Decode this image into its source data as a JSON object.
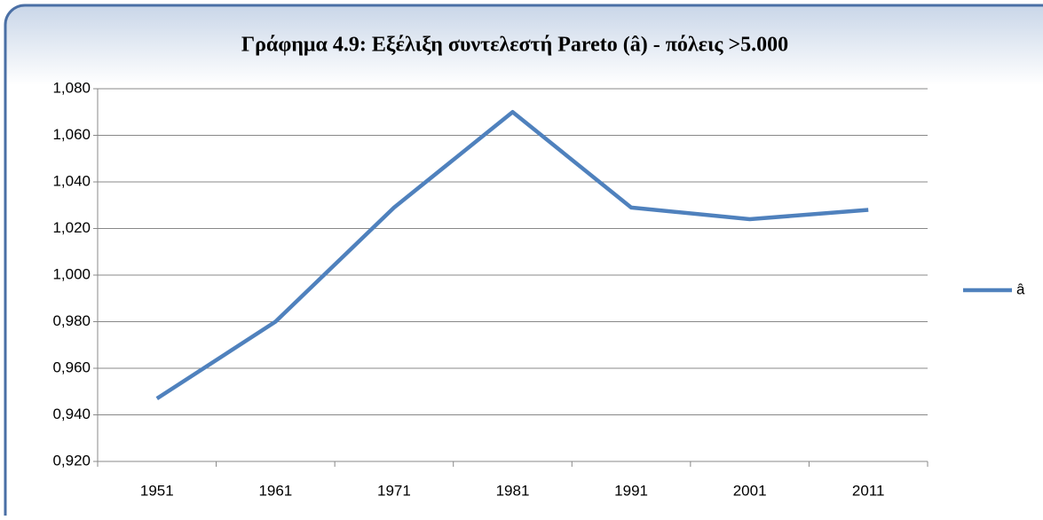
{
  "chart_data": {
    "type": "line",
    "title": "Γράφημα 4.9: Εξέλιξη συντελεστή Pareto (â) - πόλεις  >5.000",
    "categories": [
      "1951",
      "1961",
      "1971",
      "1981",
      "1991",
      "2001",
      "2011"
    ],
    "series": [
      {
        "name": "â",
        "color": "#4f81bd",
        "values": [
          0.947,
          0.98,
          1.029,
          1.07,
          1.029,
          1.024,
          1.028
        ]
      }
    ],
    "ylim": [
      0.92,
      1.08
    ],
    "yticks": [
      {
        "value": 0.92,
        "label": "0,920"
      },
      {
        "value": 0.94,
        "label": "0,940"
      },
      {
        "value": 0.96,
        "label": "0,960"
      },
      {
        "value": 0.98,
        "label": "0,980"
      },
      {
        "value": 1.0,
        "label": "1,000"
      },
      {
        "value": 1.02,
        "label": "1,020"
      },
      {
        "value": 1.04,
        "label": "1,040"
      },
      {
        "value": 1.06,
        "label": "1,060"
      },
      {
        "value": 1.08,
        "label": "1,080"
      }
    ],
    "grid": true,
    "legend": "right"
  }
}
